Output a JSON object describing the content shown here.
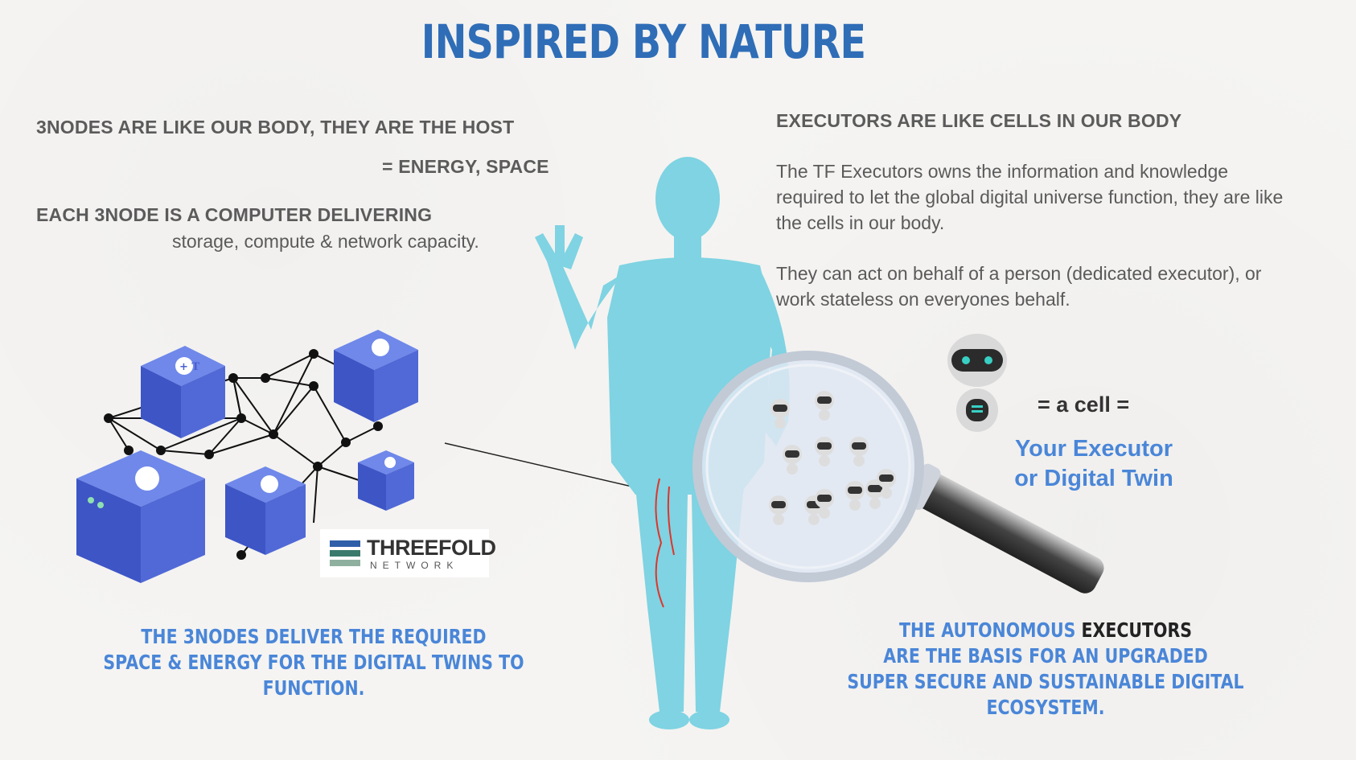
{
  "title": "INSPIRED BY NATURE",
  "left": {
    "heading1": "3NODES ARE LIKE OUR BODY, THEY ARE THE HOST",
    "heading1_sub": "= ENERGY, SPACE",
    "heading2": "EACH 3NODE IS A COMPUTER DELIVERING",
    "heading2_sub": "storage, compute & network capacity.",
    "caption_line1": "THE 3NODES DELIVER THE REQUIRED",
    "caption_line2": "SPACE & ENERGY FOR THE DIGITAL TWINS TO FUNCTION."
  },
  "right": {
    "heading": "EXECUTORS ARE LIKE CELLS IN OUR BODY",
    "para1_line1": "The TF Executors owns the information and knowledge",
    "para1_line2": "required to let the global digital universe function, they are like",
    "para1_line3": "the cells in our body.",
    "para2_line1": "They can act on behalf of a person (dedicated executor), or",
    "para2_line2": "work stateless on everyones behalf.",
    "cell_equals": "=  a cell =",
    "twin_line1": "Your Executor",
    "twin_line2": "or Digital Twin",
    "caption_blue1": "THE AUTONOMOUS",
    "caption_dark1": "EXECUTORS",
    "caption_line2": "ARE THE BASIS FOR AN UPGRADED",
    "caption_line3": "SUPER SECURE AND SUSTAINABLE DIGITAL ECOSYSTEM."
  },
  "logo": {
    "name": "THREEFOLD",
    "sub": "NETWORK"
  },
  "node_glyph": "+ T",
  "colors": {
    "title": "#2f6db7",
    "caption_blue": "#4a86d8",
    "body_figure": "#7fd3e2",
    "server_blue": "#4a5fd0",
    "text_gray": "#5a5a5a"
  },
  "icons": [
    "server-node-icon",
    "network-mesh",
    "human-body-figure",
    "magnifying-glass-icon",
    "robot-icon",
    "threefold-logo-icon"
  ]
}
